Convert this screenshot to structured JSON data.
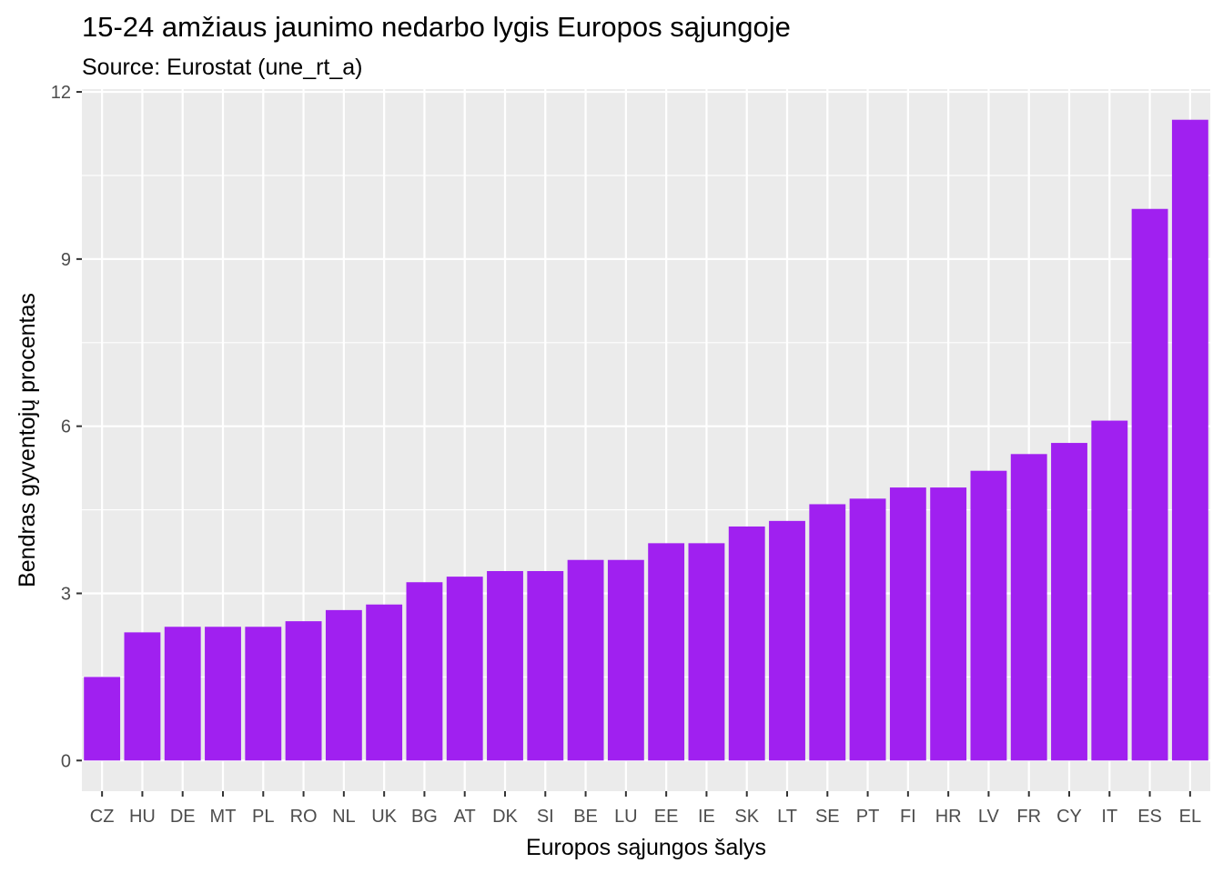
{
  "chart_data": {
    "type": "bar",
    "title": "15-24 amžiaus jaunimo nedarbo lygis Europos sąjungoje",
    "subtitle": "Source: Eurostat (une_rt_a)",
    "xlabel": "Europos sąjungos šalys",
    "ylabel": "Bendras gyventojų procentas",
    "categories": [
      "CZ",
      "HU",
      "DE",
      "MT",
      "PL",
      "RO",
      "NL",
      "UK",
      "BG",
      "AT",
      "DK",
      "SI",
      "BE",
      "LU",
      "EE",
      "IE",
      "SK",
      "LT",
      "SE",
      "PT",
      "FI",
      "HR",
      "LV",
      "FR",
      "CY",
      "IT",
      "ES",
      "EL"
    ],
    "values": [
      1.5,
      2.3,
      2.4,
      2.4,
      2.4,
      2.5,
      2.7,
      2.8,
      3.2,
      3.3,
      3.4,
      3.4,
      3.6,
      3.6,
      3.9,
      3.9,
      4.2,
      4.3,
      4.6,
      4.7,
      4.9,
      4.9,
      5.2,
      5.5,
      5.7,
      6.1,
      9.9,
      11.5
    ],
    "ylim": [
      -0.55,
      12.05
    ],
    "yticks": [
      0,
      3,
      6,
      9,
      12
    ],
    "ytick_labels": [
      "0",
      "3",
      "6",
      "9",
      "12"
    ],
    "grid": true,
    "legend": "none",
    "bar_color": "#A020F0",
    "panel_background": "#EBEBEB",
    "grid_color": "#FFFFFF"
  }
}
